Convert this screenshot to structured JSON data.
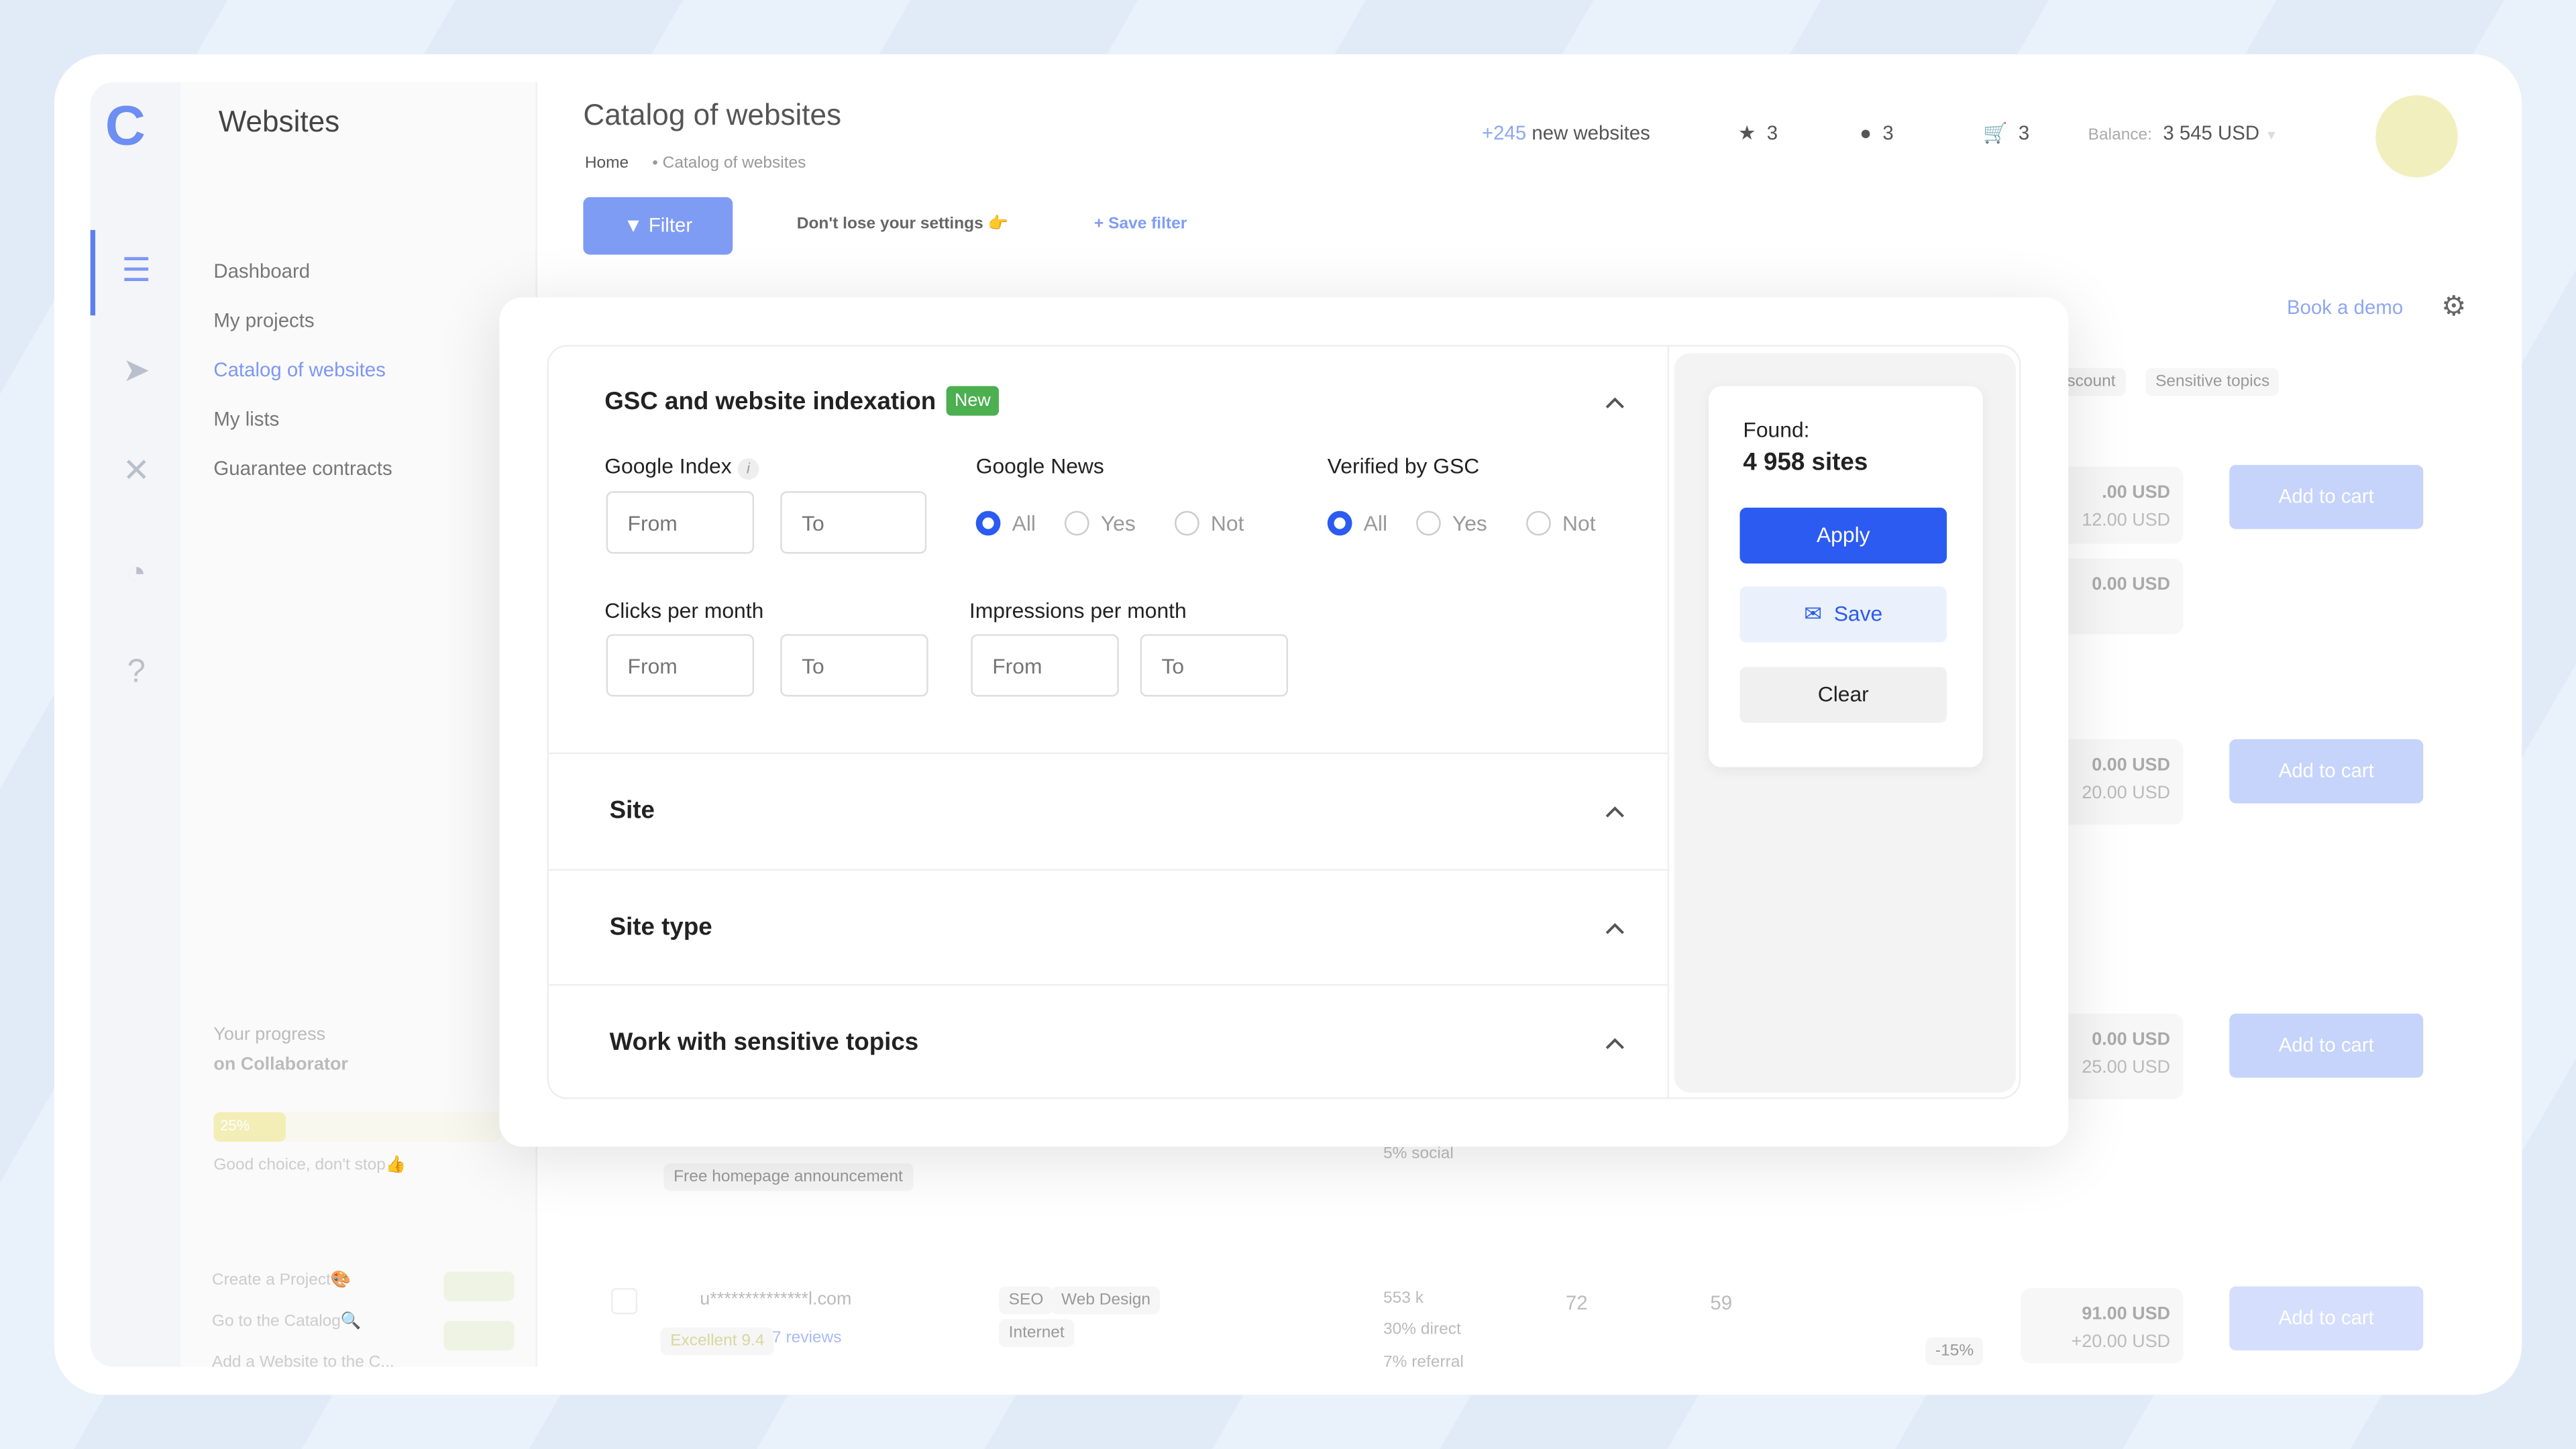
{
  "sidebar": {
    "title": "Websites",
    "items": [
      {
        "label": "Dashboard"
      },
      {
        "label": "My projects"
      },
      {
        "label": "Catalog of websites",
        "active": true
      },
      {
        "label": "My lists"
      },
      {
        "label": "Guarantee contracts"
      }
    ],
    "icons": [
      "catalog-icon",
      "send-icon",
      "tools-icon",
      "support-headset-icon",
      "help-icon"
    ],
    "progress": {
      "title": "Your progress",
      "subtitle": "on Collaborator",
      "value_label": "25%",
      "value": 25,
      "message": "Good choice, don't stop👍"
    },
    "steps": [
      {
        "label": "Create a Project🎨"
      },
      {
        "label": "Go to the Catalog🔍"
      },
      {
        "label": "Add a Website to the C..."
      }
    ]
  },
  "header": {
    "title": "Catalog of websites",
    "breadcrumb": [
      "Home",
      "Catalog of websites"
    ],
    "new_count": "+245",
    "new_label": "new websites",
    "favorites": "3",
    "messages": "3",
    "cart": "3",
    "balance_label": "Balance:",
    "balance": "3 545 USD"
  },
  "toolbar": {
    "filter": "Filter",
    "hint": "Don't lose your settings 👉",
    "save_filter": "Save filter",
    "book_demo": "Book a demo"
  },
  "background": {
    "tags": [
      "iscount",
      "Sensitive topics"
    ],
    "add_to_cart": "Add to cart",
    "prices": [
      {
        "price": ".00 USD",
        "sub": "12.00 USD"
      },
      {
        "price": "0.00 USD",
        "sub": ""
      },
      {
        "price": "0.00 USD",
        "sub": "20.00 USD"
      },
      {
        "price": "0.00 USD",
        "sub": "25.00 USD"
      },
      {
        "price": "91.00 USD",
        "sub": "+20.00 USD"
      }
    ],
    "row": {
      "domain": "u**************l.com",
      "tags": [
        "SEO",
        "Web Design",
        "Internet"
      ],
      "rating": "Excellent 9.4",
      "reviews": "7 reviews",
      "traffic": "553 k",
      "direct": "30% direct",
      "referral": "7% referral",
      "social": "5% social",
      "col1": "72",
      "col2": "59",
      "discount": "-15%",
      "announcement": "Free homepage announcement"
    }
  },
  "filter_modal": {
    "section_title": "GSC and website indexation",
    "badge": "New",
    "badge_color": "#4caf50",
    "google_index": {
      "label": "Google Index",
      "from": "From",
      "to": "To"
    },
    "google_news": {
      "label": "Google News",
      "options": [
        "All",
        "Yes",
        "Not"
      ],
      "selected": "All"
    },
    "verified_gsc": {
      "label": "Verified by GSC",
      "options": [
        "All",
        "Yes",
        "Not"
      ],
      "selected": "All"
    },
    "clicks": {
      "label": "Clicks per month",
      "from": "From",
      "to": "To"
    },
    "impressions": {
      "label": "Impressions per month",
      "from": "From",
      "to": "To"
    },
    "sections": [
      "Site",
      "Site type",
      "Work with sensitive topics"
    ],
    "found_label": "Found:",
    "found_value": "4 958 sites",
    "apply": "Apply",
    "save": "Save",
    "clear": "Clear",
    "accent": "#2b5bf0"
  }
}
